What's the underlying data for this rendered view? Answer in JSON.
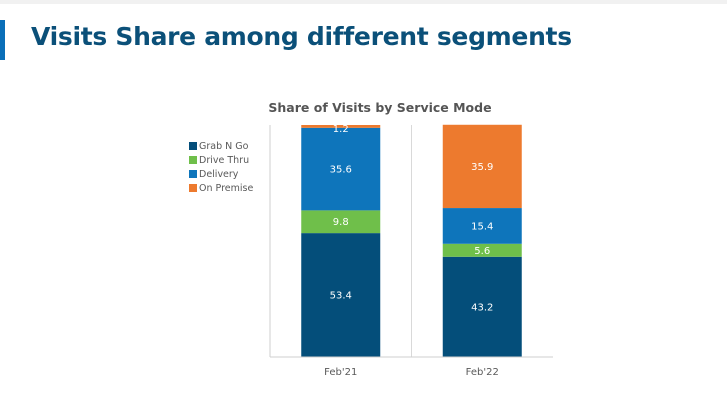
{
  "page": {
    "title": "Visits Share among different segments",
    "accent_color": "#0a6fb8",
    "title_color": "#0b5079"
  },
  "chart_data": {
    "type": "bar",
    "stacked": true,
    "title": "Share of Visits by Service Mode",
    "categories": [
      "Feb'21",
      "Feb'22"
    ],
    "series": [
      {
        "name": "Grab N Go",
        "color": "#044e7a",
        "values": [
          53.4,
          43.2
        ]
      },
      {
        "name": "Drive Thru",
        "color": "#6fbf4a",
        "values": [
          9.8,
          5.6
        ]
      },
      {
        "name": "Delivery",
        "color": "#0e75bb",
        "values": [
          35.6,
          15.4
        ]
      },
      {
        "name": "On Premise",
        "color": "#ed7a2e",
        "values": [
          1.2,
          35.9
        ]
      }
    ],
    "xlabel": "",
    "ylabel": "",
    "ylim": [
      0,
      100
    ],
    "grid": false,
    "legend_position": "left"
  }
}
